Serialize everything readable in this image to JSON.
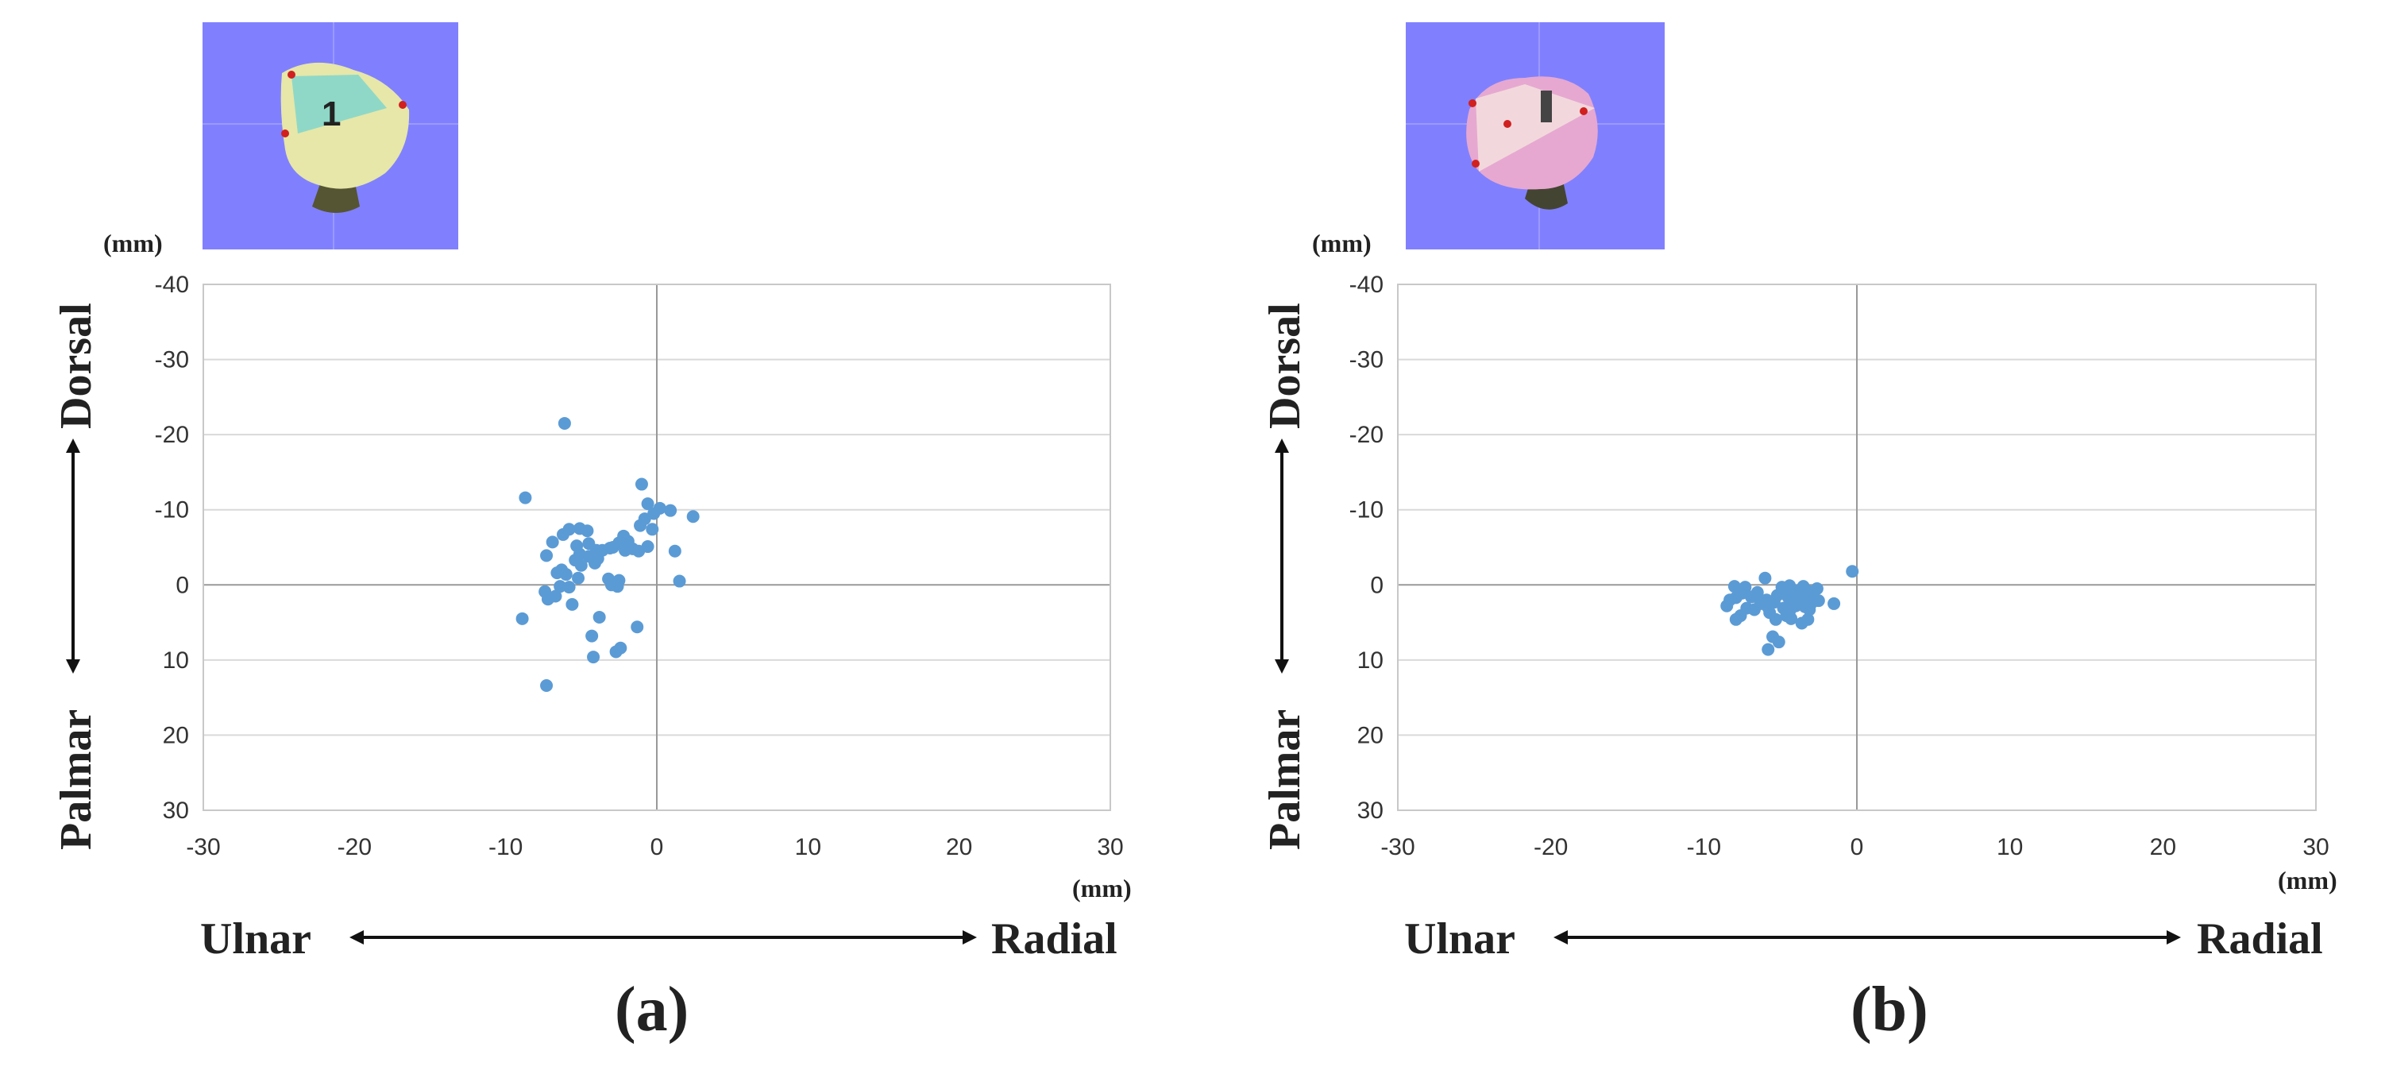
{
  "charts": [
    {
      "id": "a",
      "caption": "(a)",
      "unit_y": "(mm)",
      "unit_x": "(mm)",
      "dir_left": "Ulnar",
      "dir_right": "Radial",
      "dir_top": "Dorsal",
      "dir_bottom": "Palmar",
      "thumb_color": "#e6e7a8",
      "thumb_face": "#8fd8c8",
      "thumb_mark": "1",
      "bg": "#8080ff"
    },
    {
      "id": "b",
      "caption": "(b)",
      "unit_y": "(mm)",
      "unit_x": "(mm)",
      "dir_left": "Ulnar",
      "dir_right": "Radial",
      "dir_top": "Dorsal",
      "dir_bottom": "Palmar",
      "thumb_color": "#e6a8d0",
      "thumb_face": "#f2d8dc",
      "thumb_mark": "",
      "bg": "#8080ff"
    }
  ],
  "chart_data": [
    {
      "type": "scatter",
      "title": "",
      "xlabel": "",
      "ylabel": "",
      "xlim": [
        -30,
        30
      ],
      "ylim": [
        -40,
        30
      ],
      "y_inverted": true,
      "xticks": [
        -30,
        -20,
        -10,
        0,
        10,
        20,
        30
      ],
      "yticks": [
        -40,
        -30,
        -20,
        -10,
        0,
        10,
        20,
        30
      ],
      "grid": true,
      "color": "#5b9bd5",
      "points": [
        [
          -6.1,
          -21.5
        ],
        [
          -8.7,
          -11.6
        ],
        [
          -1.0,
          -13.4
        ],
        [
          -0.6,
          -10.8
        ],
        [
          0.2,
          -10.2
        ],
        [
          -0.2,
          -9.5
        ],
        [
          0.9,
          -9.9
        ],
        [
          2.4,
          -9.1
        ],
        [
          -0.8,
          -8.8
        ],
        [
          -1.1,
          -7.9
        ],
        [
          -0.3,
          -7.4
        ],
        [
          -5.8,
          -7.4
        ],
        [
          -5.1,
          -7.5
        ],
        [
          -4.6,
          -7.2
        ],
        [
          -6.2,
          -6.7
        ],
        [
          -2.2,
          -6.5
        ],
        [
          -6.9,
          -5.7
        ],
        [
          -1.9,
          -5.8
        ],
        [
          -2.5,
          -5.6
        ],
        [
          -4.5,
          -5.5
        ],
        [
          -5.3,
          -5.2
        ],
        [
          -0.6,
          -5.1
        ],
        [
          -2.9,
          -5.0
        ],
        [
          -3.1,
          -4.9
        ],
        [
          -1.6,
          -4.8
        ],
        [
          -4.0,
          -4.6
        ],
        [
          -3.6,
          -4.6
        ],
        [
          -1.2,
          -4.5
        ],
        [
          -2.1,
          -4.6
        ],
        [
          1.2,
          -4.5
        ],
        [
          -5.1,
          -4.1
        ],
        [
          -7.3,
          -3.9
        ],
        [
          -4.5,
          -3.8
        ],
        [
          -3.9,
          -3.5
        ],
        [
          -4.1,
          -2.9
        ],
        [
          -5.4,
          -3.3
        ],
        [
          -5.0,
          -2.6
        ],
        [
          -6.3,
          -2.0
        ],
        [
          -6.6,
          -1.6
        ],
        [
          -6.0,
          -1.4
        ],
        [
          -5.2,
          -0.9
        ],
        [
          -3.2,
          -0.8
        ],
        [
          -2.5,
          -0.6
        ],
        [
          1.5,
          -0.5
        ],
        [
          -3.0,
          0.0
        ],
        [
          -6.4,
          0.2
        ],
        [
          -5.8,
          0.3
        ],
        [
          -2.6,
          0.2
        ],
        [
          -7.4,
          0.9
        ],
        [
          -7.2,
          1.9
        ],
        [
          -5.6,
          2.6
        ],
        [
          -6.7,
          1.5
        ],
        [
          -8.9,
          4.5
        ],
        [
          -3.8,
          4.3
        ],
        [
          -1.3,
          5.6
        ],
        [
          -4.3,
          6.8
        ],
        [
          -2.4,
          8.4
        ],
        [
          -2.7,
          8.9
        ],
        [
          -4.2,
          9.6
        ],
        [
          -7.3,
          13.4
        ]
      ]
    },
    {
      "type": "scatter",
      "title": "",
      "xlabel": "",
      "ylabel": "",
      "xlim": [
        -30,
        30
      ],
      "ylim": [
        -40,
        30
      ],
      "y_inverted": true,
      "xticks": [
        -30,
        -20,
        -10,
        0,
        10,
        20,
        30
      ],
      "yticks": [
        -40,
        -30,
        -20,
        -10,
        0,
        10,
        20,
        30
      ],
      "grid": true,
      "color": "#5b9bd5",
      "points": [
        [
          -0.3,
          -1.8
        ],
        [
          -6.0,
          -0.9
        ],
        [
          -8.0,
          0.2
        ],
        [
          -7.3,
          0.3
        ],
        [
          -4.4,
          0.1
        ],
        [
          -4.9,
          0.3
        ],
        [
          -3.5,
          0.2
        ],
        [
          -2.6,
          0.5
        ],
        [
          -3.2,
          0.8
        ],
        [
          -3.9,
          0.8
        ],
        [
          -4.2,
          1.2
        ],
        [
          -6.5,
          1.0
        ],
        [
          -7.5,
          1.1
        ],
        [
          -5.2,
          1.4
        ],
        [
          -2.9,
          1.4
        ],
        [
          -3.5,
          1.6
        ],
        [
          -4.5,
          1.6
        ],
        [
          -6.9,
          1.6
        ],
        [
          -7.9,
          1.7
        ],
        [
          -3.3,
          1.9
        ],
        [
          -4.0,
          2.0
        ],
        [
          -5.9,
          2.0
        ],
        [
          -8.3,
          2.0
        ],
        [
          -2.5,
          2.1
        ],
        [
          -3.7,
          2.3
        ],
        [
          -5.4,
          2.3
        ],
        [
          -6.3,
          2.5
        ],
        [
          -4.4,
          2.5
        ],
        [
          -3.0,
          2.5
        ],
        [
          -1.5,
          2.5
        ],
        [
          -8.5,
          2.8
        ],
        [
          -4.0,
          2.8
        ],
        [
          -3.4,
          2.9
        ],
        [
          -5.8,
          3.0
        ],
        [
          -4.8,
          3.1
        ],
        [
          -7.2,
          3.1
        ],
        [
          -6.7,
          3.3
        ],
        [
          -3.1,
          3.3
        ],
        [
          -4.4,
          3.5
        ],
        [
          -5.7,
          3.7
        ],
        [
          -7.6,
          4.1
        ],
        [
          -4.6,
          4.1
        ],
        [
          -4.3,
          4.5
        ],
        [
          -3.2,
          4.6
        ],
        [
          -5.3,
          4.6
        ],
        [
          -7.9,
          4.6
        ],
        [
          -3.6,
          5.1
        ],
        [
          -5.5,
          6.9
        ],
        [
          -5.1,
          7.6
        ],
        [
          -5.8,
          8.6
        ]
      ]
    }
  ]
}
